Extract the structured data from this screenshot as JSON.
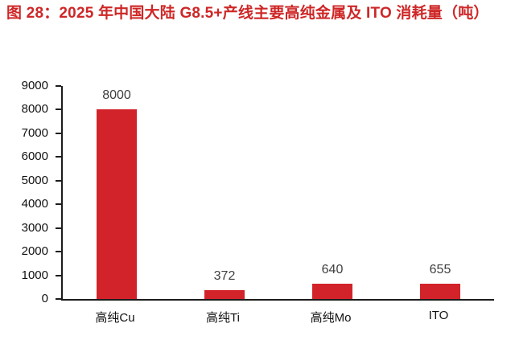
{
  "figure": {
    "title": "图 28：2025 年中国大陆 G8.5+产线主要高纯金属及 ITO 消耗量（吨）"
  },
  "colors": {
    "title_red": "#ce2727",
    "bar_red": "#d2232a",
    "axis": "#1c1c1c",
    "tick_label": "#111111",
    "value_label": "#3f3f3f"
  },
  "chart_data": {
    "type": "bar",
    "title": "图 28：2025 年中国大陆 G8.5+产线主要高纯金属及 ITO 消耗量（吨）",
    "categories": [
      "高纯Cu",
      "高纯Ti",
      "高纯Mo",
      "ITO"
    ],
    "values": [
      8000,
      372,
      640,
      655
    ],
    "xlabel": "",
    "ylabel": "",
    "ylim": [
      0,
      9000
    ],
    "ytick_step": 1000,
    "grid": false,
    "legend": false,
    "data_labels": true,
    "bar_color": "#d2232a"
  }
}
